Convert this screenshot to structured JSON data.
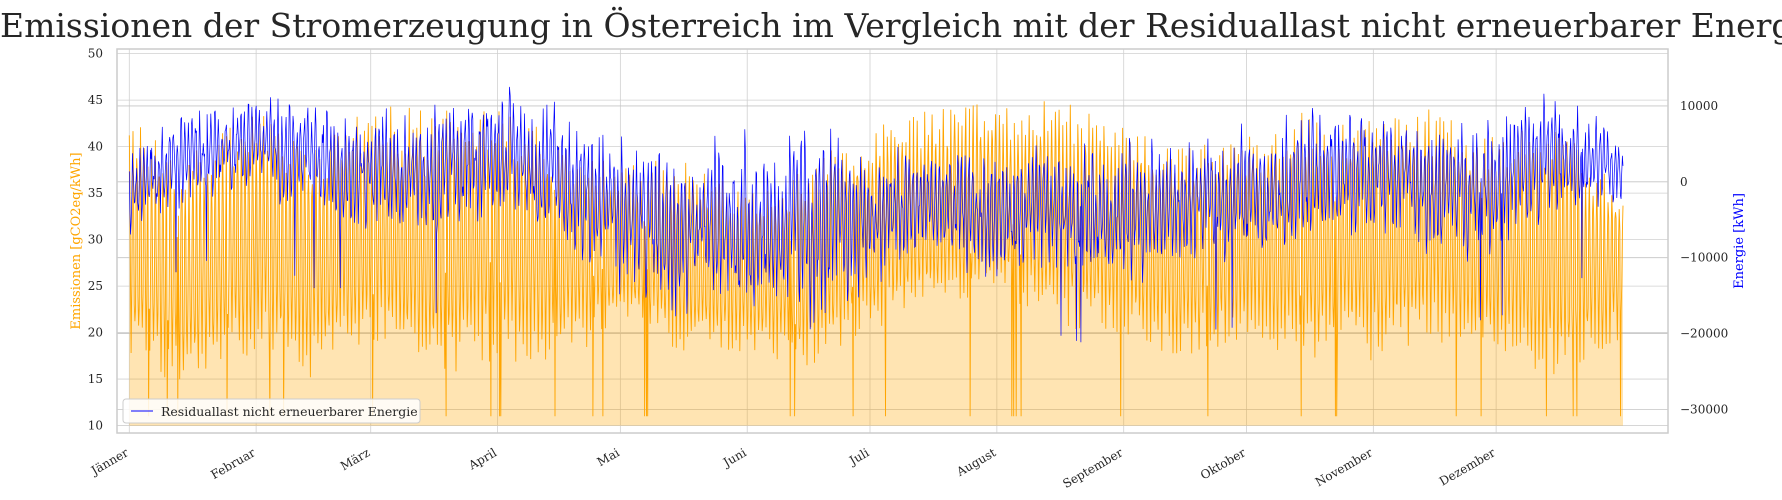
{
  "chart_data": {
    "type": "line",
    "title": "Emissionen der Stromerzeugung in Österreich im Vergleich mit der Residuallast nicht erneuerbarer Energie",
    "x_type": "date",
    "x_range": [
      "2021-01-01",
      "2021-12-31"
    ],
    "xticks": [
      "Jänner",
      "Februar",
      "März",
      "April",
      "Mai",
      "Juni",
      "Juli",
      "August",
      "September",
      "Oktober",
      "November",
      "Dezember"
    ],
    "y_left": {
      "label": "Emissionen [gCO2eq/kWh]",
      "color": "#ffa500",
      "ylim": [
        9.2,
        50.5
      ],
      "ticks": [
        10,
        15,
        20,
        25,
        30,
        35,
        40,
        45,
        50
      ]
    },
    "y_right": {
      "label": "Energie [kWh]",
      "color": "#0000ff",
      "ylim": [
        -33100,
        17500
      ],
      "ticks": [
        -30000,
        -20000,
        -10000,
        0,
        10000
      ],
      "tick_labels": [
        "−30000",
        "−20000",
        "−10000",
        "0",
        "10000"
      ]
    },
    "grid": true,
    "legend": {
      "position": "lower-left",
      "entries": [
        "Residuallast nicht erneuerbarer Energie"
      ]
    },
    "series": [
      {
        "axis": "left",
        "color": "#ffa500",
        "style": "filled-oscillating",
        "x": [
          "2021-01-01",
          "2021-01-15",
          "2021-02-01",
          "2021-02-15",
          "2021-03-01",
          "2021-03-15",
          "2021-04-01",
          "2021-04-15",
          "2021-05-01",
          "2021-05-15",
          "2021-06-01",
          "2021-06-15",
          "2021-07-01",
          "2021-07-15",
          "2021-08-01",
          "2021-08-15",
          "2021-09-01",
          "2021-09-15",
          "2021-10-01",
          "2021-10-15",
          "2021-11-01",
          "2021-11-15",
          "2021-12-01",
          "2021-12-15",
          "2021-12-31"
        ],
        "low": [
          17,
          14,
          18,
          15,
          19,
          15,
          17,
          16,
          21,
          18,
          18,
          16,
          20,
          22,
          24,
          21,
          19,
          17,
          19,
          17,
          17,
          19,
          18,
          15,
          19
        ],
        "high": [
          43,
          39,
          44,
          40,
          45,
          44,
          45,
          41,
          38,
          39,
          35,
          38,
          42,
          44,
          45,
          45,
          44,
          40,
          41,
          44,
          44,
          44,
          41,
          43,
          36
        ]
      },
      {
        "axis": "right",
        "name": "Residuallast nicht erneuerbarer Energie",
        "color": "#0000ff",
        "style": "line",
        "x": [
          "2021-01-01",
          "2021-01-15",
          "2021-02-01",
          "2021-02-15",
          "2021-03-01",
          "2021-03-15",
          "2021-04-01",
          "2021-04-15",
          "2021-05-01",
          "2021-05-15",
          "2021-06-01",
          "2021-06-15",
          "2021-07-01",
          "2021-07-15",
          "2021-08-01",
          "2021-08-15",
          "2021-09-01",
          "2021-09-15",
          "2021-10-01",
          "2021-10-15",
          "2021-11-01",
          "2021-11-15",
          "2021-12-01",
          "2021-12-15",
          "2021-12-31"
        ],
        "low": [
          -10000,
          -5000,
          -3000,
          -8000,
          -8000,
          -12000,
          -6000,
          -12000,
          -18000,
          -21000,
          -22000,
          -25000,
          -16000,
          -12000,
          -17000,
          -14000,
          -17000,
          -14000,
          -13000,
          -11000,
          -9000,
          -13000,
          -12000,
          -8000,
          -5000
        ],
        "high": [
          7000,
          12000,
          14000,
          13000,
          12000,
          13000,
          15000,
          14000,
          10000,
          10000,
          10000,
          13000,
          6000,
          7000,
          8000,
          7000,
          9000,
          8000,
          10000,
          12000,
          13000,
          11000,
          12000,
          15000,
          8000
        ]
      }
    ]
  }
}
